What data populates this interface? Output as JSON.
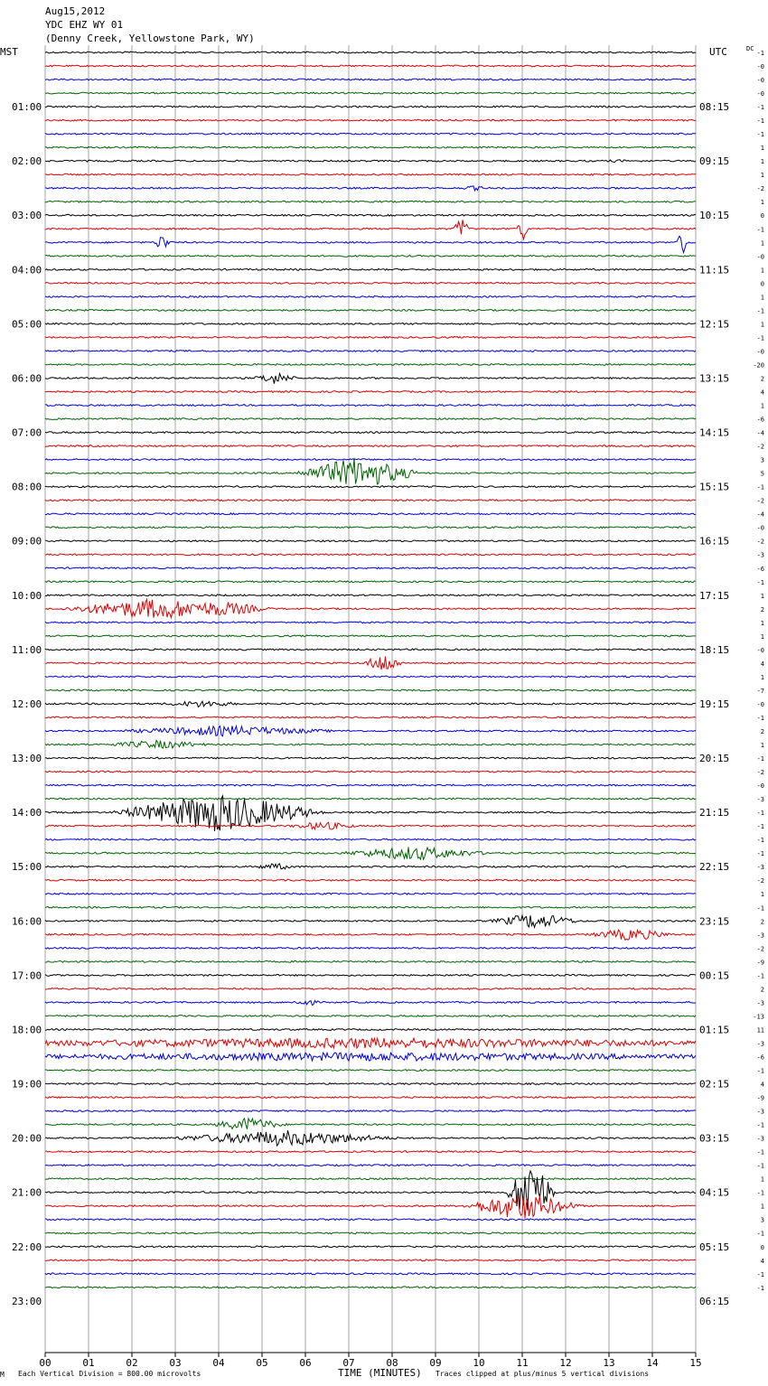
{
  "header": {
    "date": "Aug15,2012",
    "station": "YDC EHZ WY 01",
    "location": "(Denny Creek, Yellowstone Park, WY)",
    "left_tz": "MST",
    "right_tz": "UTC",
    "dc_label": "DC"
  },
  "footer": {
    "scale_text": "Each Vertical Division =  800.00 microvolts",
    "xlabel": "TIME (MINUTES)",
    "clip_text": "Traces clipped at plus/minus 5 vertical divisions",
    "corner_mark": "M"
  },
  "colors": {
    "trace_cycle": [
      "#000000",
      "#e00000",
      "#0000e0",
      "#006400"
    ],
    "grid": "#909090"
  },
  "chart_data": {
    "type": "line",
    "title": "YDC EHZ WY 01",
    "xlabel": "TIME (MINUTES)",
    "xlim": [
      0,
      15
    ],
    "x_ticks": [
      "00",
      "01",
      "02",
      "03",
      "04",
      "05",
      "06",
      "07",
      "08",
      "09",
      "10",
      "11",
      "12",
      "13",
      "14",
      "15"
    ],
    "traces_per_hour": 4,
    "minutes_per_trace": 15,
    "left_hour_labels": [
      "01:00",
      "02:00",
      "03:00",
      "04:00",
      "05:00",
      "06:00",
      "07:00",
      "08:00",
      "09:00",
      "10:00",
      "11:00",
      "12:00",
      "13:00",
      "14:00",
      "15:00",
      "16:00",
      "17:00",
      "18:00",
      "19:00",
      "20:00",
      "21:00",
      "22:00",
      "23:00"
    ],
    "right_hour_labels": [
      "08:15",
      "09:15",
      "10:15",
      "11:15",
      "12:15",
      "13:15",
      "14:15",
      "15:15",
      "16:15",
      "17:15",
      "18:15",
      "19:15",
      "20:15",
      "21:15",
      "22:15",
      "23:15",
      "00:15",
      "01:15",
      "02:15",
      "03:15",
      "04:15",
      "05:15",
      "06:15"
    ],
    "dc_offsets": [
      "-1",
      "-0",
      "-0",
      "-0",
      "-1",
      "-1",
      "-1",
      "1",
      "1",
      "1",
      "-2",
      "1",
      "0",
      "-1",
      "1",
      "-0",
      "1",
      "0",
      "1",
      "-1",
      "1",
      "-1",
      "-0",
      "-20",
      "2",
      "4",
      "1",
      "-6",
      "-4",
      "-2",
      "3",
      "5",
      "-1",
      "-2",
      "-4",
      "-0",
      "-2",
      "-3",
      "-6",
      "-1",
      "1",
      "2",
      "1",
      "1",
      "-0",
      "4",
      "1",
      "-7",
      "-0",
      "-1",
      "2",
      "1",
      "-1",
      "-2",
      "-0",
      "-3",
      "-1",
      "-1",
      "-1",
      "-1",
      "-3",
      "-2",
      "1",
      "-1",
      "2",
      "-3",
      "-2",
      "-9",
      "-1",
      "2",
      "-3",
      "-13",
      "11",
      "-3",
      "-6",
      "-1",
      "4",
      "-9",
      "-3",
      "-1",
      "-3",
      "-1",
      "-1",
      "1",
      "-1",
      "1",
      "3",
      "-1",
      "0",
      "4",
      "-1",
      "-1"
    ],
    "series": [
      {
        "color": "black",
        "description": "hour lines 1,5,9,..."
      },
      {
        "color": "red"
      },
      {
        "color": "blue"
      },
      {
        "color": "green"
      }
    ],
    "events": [
      {
        "trace": 8,
        "minute": 13.2,
        "amp": 2,
        "dur": 0.4
      },
      {
        "trace": 10,
        "minute": 9.9,
        "amp": 3,
        "dur": 0.4
      },
      {
        "trace": 13,
        "minute": 9.6,
        "amp": 15,
        "dur": 0.2
      },
      {
        "trace": 13,
        "minute": 11.0,
        "amp": 16,
        "dur": 0.15
      },
      {
        "trace": 14,
        "minute": 2.7,
        "amp": 12,
        "dur": 0.2
      },
      {
        "trace": 14,
        "minute": 14.7,
        "amp": 16,
        "dur": 0.15
      },
      {
        "trace": 24,
        "minute": 5.3,
        "amp": 7,
        "dur": 0.6
      },
      {
        "trace": 31,
        "minute": 7.2,
        "amp": 18,
        "dur": 1.6
      },
      {
        "trace": 41,
        "minute": 2.6,
        "amp": 12,
        "dur": 2.5
      },
      {
        "trace": 41,
        "minute": 4.0,
        "amp": 9,
        "dur": 1.4
      },
      {
        "trace": 45,
        "minute": 7.8,
        "amp": 12,
        "dur": 0.5
      },
      {
        "trace": 48,
        "minute": 3.6,
        "amp": 4,
        "dur": 1.2
      },
      {
        "trace": 50,
        "minute": 4.2,
        "amp": 6,
        "dur": 3.0
      },
      {
        "trace": 51,
        "minute": 2.6,
        "amp": 5,
        "dur": 1.5
      },
      {
        "trace": 56,
        "minute": 4.0,
        "amp": 22,
        "dur": 2.6
      },
      {
        "trace": 56,
        "minute": 2.6,
        "amp": 6,
        "dur": 1.2
      },
      {
        "trace": 57,
        "minute": 6.4,
        "amp": 5,
        "dur": 1.0
      },
      {
        "trace": 59,
        "minute": 8.5,
        "amp": 8,
        "dur": 2.0
      },
      {
        "trace": 60,
        "minute": 5.3,
        "amp": 4,
        "dur": 0.7
      },
      {
        "trace": 64,
        "minute": 11.3,
        "amp": 9,
        "dur": 1.2
      },
      {
        "trace": 65,
        "minute": 13.5,
        "amp": 7,
        "dur": 1.2
      },
      {
        "trace": 70,
        "minute": 6.0,
        "amp": 5,
        "dur": 0.4
      },
      {
        "trace": 73,
        "minute": 7.5,
        "amp": 6,
        "dur": 14.0
      },
      {
        "trace": 74,
        "minute": 7.5,
        "amp": 5,
        "dur": 14.0
      },
      {
        "trace": 79,
        "minute": 4.7,
        "amp": 8,
        "dur": 1.0
      },
      {
        "trace": 80,
        "minute": 5.5,
        "amp": 9,
        "dur": 3.0
      },
      {
        "trace": 84,
        "minute": 11.2,
        "amp": 40,
        "dur": 0.6
      },
      {
        "trace": 85,
        "minute": 11.0,
        "amp": 16,
        "dur": 1.5
      }
    ]
  }
}
